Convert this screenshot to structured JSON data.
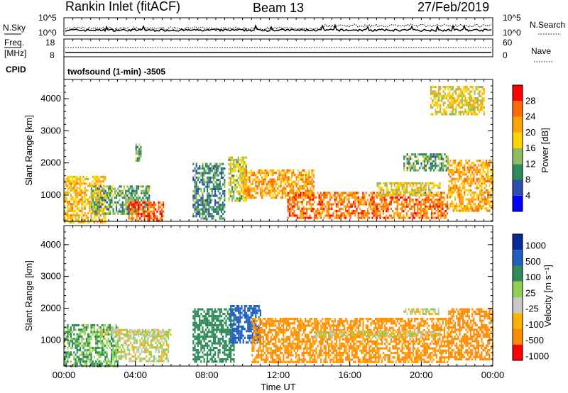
{
  "header": {
    "title": "Rankin Inlet (fitACF)",
    "beam": "Beam 13",
    "date": "27/Feb/2019"
  },
  "labels": {
    "nsky": "N.Sky",
    "nsearch": "N.Search",
    "freq": "Freq.",
    "freq_unit": "[MHz]",
    "nave": "Nave",
    "cpid": "CPID",
    "cpid_value": "twofsound (1-min) -3505",
    "nsky_ticks": [
      "10^5",
      "10^0"
    ],
    "nsearch_ticks": [
      "10^5",
      "10^0"
    ],
    "freq_ticks": [
      "18",
      "8"
    ],
    "nave_ticks": [
      "60",
      "0"
    ]
  },
  "colors": {
    "power": [
      "#0000ff",
      "#2a4fb0",
      "#2e8b57",
      "#8fbc5f",
      "#ffd400",
      "#ffa500",
      "#ff6a00",
      "#ff0000"
    ],
    "velocity": [
      "#ff0000",
      "#ff8c00",
      "#ffb000",
      "#c8c8c8",
      "#90d050",
      "#2e8b57",
      "#1f5fbf",
      "#0a2a9a"
    ],
    "ground_scatter": "#c0c0c0"
  },
  "chart_data": [
    {
      "type": "heatmap",
      "name": "power",
      "xlabel": "",
      "ylabel": "Slant Range [km]",
      "xlim": [
        "00:00",
        "24:00"
      ],
      "ylim": [
        180,
        4600
      ],
      "y_ticks": [
        1000,
        2000,
        3000,
        4000
      ],
      "colorbar": {
        "label": "Power [dB]",
        "range": [
          0,
          32
        ],
        "ticks": [
          4,
          8,
          12,
          16,
          20,
          24,
          28
        ]
      },
      "echo_regions": [
        {
          "t0": 0.0,
          "t1": 2.3,
          "r0": 180,
          "r1": 1600,
          "level": 20
        },
        {
          "t0": 1.5,
          "t1": 4.8,
          "r0": 400,
          "r1": 1300,
          "level": 12
        },
        {
          "t0": 3.6,
          "t1": 5.6,
          "r0": 200,
          "r1": 800,
          "level": 27
        },
        {
          "t0": 4.0,
          "t1": 4.3,
          "r0": 2100,
          "r1": 2600,
          "level": 12
        },
        {
          "t0": 7.2,
          "t1": 9.0,
          "r0": 300,
          "r1": 2000,
          "level": 10
        },
        {
          "t0": 9.2,
          "t1": 10.2,
          "r0": 800,
          "r1": 2200,
          "level": 16
        },
        {
          "t0": 10.0,
          "t1": 14.0,
          "r0": 900,
          "r1": 1800,
          "level": 22
        },
        {
          "t0": 12.5,
          "t1": 21.5,
          "r0": 300,
          "r1": 1100,
          "level": 25
        },
        {
          "t0": 17.5,
          "t1": 21.0,
          "r0": 1000,
          "r1": 1400,
          "level": 17
        },
        {
          "t0": 19.0,
          "t1": 21.5,
          "r0": 1800,
          "r1": 2300,
          "level": 12
        },
        {
          "t0": 21.5,
          "t1": 24.0,
          "r0": 500,
          "r1": 2100,
          "level": 22
        },
        {
          "t0": 20.5,
          "t1": 23.5,
          "r0": 3500,
          "r1": 4400,
          "level": 18
        }
      ]
    },
    {
      "type": "heatmap",
      "name": "velocity",
      "xlabel": "Time UT",
      "ylabel": "Slant Range [km]",
      "xlim": [
        "00:00",
        "24:00"
      ],
      "ylim": [
        180,
        4600
      ],
      "x_ticks": [
        "00:00",
        "04:00",
        "08:00",
        "12:00",
        "16:00",
        "20:00",
        "00:00"
      ],
      "y_ticks": [
        1000,
        2000,
        3000,
        4000
      ],
      "colorbar": {
        "label": "Velocity [m s⁻¹]",
        "ticks": [
          1000,
          500,
          100,
          25,
          -25,
          -100,
          -500,
          -1000
        ]
      },
      "echo_regions": [
        {
          "t0": 0.0,
          "t1": 3.0,
          "r0": 180,
          "r1": 1500,
          "level": 100
        },
        {
          "t0": 3.0,
          "t1": 5.8,
          "r0": 300,
          "r1": 1300,
          "level": 20
        },
        {
          "t0": 2.0,
          "t1": 6.0,
          "r0": 1150,
          "r1": 1350,
          "level": 0
        },
        {
          "t0": 7.2,
          "t1": 9.5,
          "r0": 300,
          "r1": 2000,
          "level": 300
        },
        {
          "t0": 9.3,
          "t1": 11.0,
          "r0": 900,
          "r1": 2100,
          "level": 600
        },
        {
          "t0": 10.5,
          "t1": 21.5,
          "r0": 300,
          "r1": 1700,
          "level": -150
        },
        {
          "t0": 14.0,
          "t1": 21.0,
          "r0": 1150,
          "r1": 1300,
          "level": 0
        },
        {
          "t0": 19.0,
          "t1": 21.0,
          "r0": 1850,
          "r1": 2000,
          "level": 0
        },
        {
          "t0": 21.5,
          "t1": 24.0,
          "r0": 400,
          "r1": 2000,
          "level": -200
        }
      ]
    }
  ]
}
